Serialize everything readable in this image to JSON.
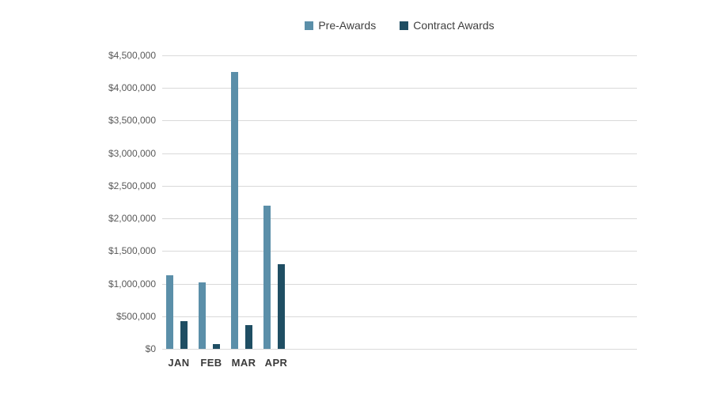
{
  "chart_data": {
    "type": "bar",
    "categories": [
      "JAN",
      "FEB",
      "MAR",
      "APR"
    ],
    "series": [
      {
        "name": "Pre-Awards",
        "color": "#5b8fa9",
        "values": [
          1130000,
          1020000,
          4250000,
          2200000
        ]
      },
      {
        "name": "Contract Awards",
        "color": "#1f4e63",
        "values": [
          430000,
          70000,
          360000,
          1300000
        ]
      }
    ],
    "title": "",
    "xlabel": "",
    "ylabel": "",
    "ylim": [
      0,
      4500000
    ],
    "ytick_step": 500000,
    "ytick_format": "$#,##0",
    "grid": true,
    "legend_position": "top",
    "colors": {
      "grid": "#d9d9d9",
      "y_tick_text": "#595959",
      "x_tick_text": "#3a3a3a",
      "legend_text": "#404040"
    }
  }
}
